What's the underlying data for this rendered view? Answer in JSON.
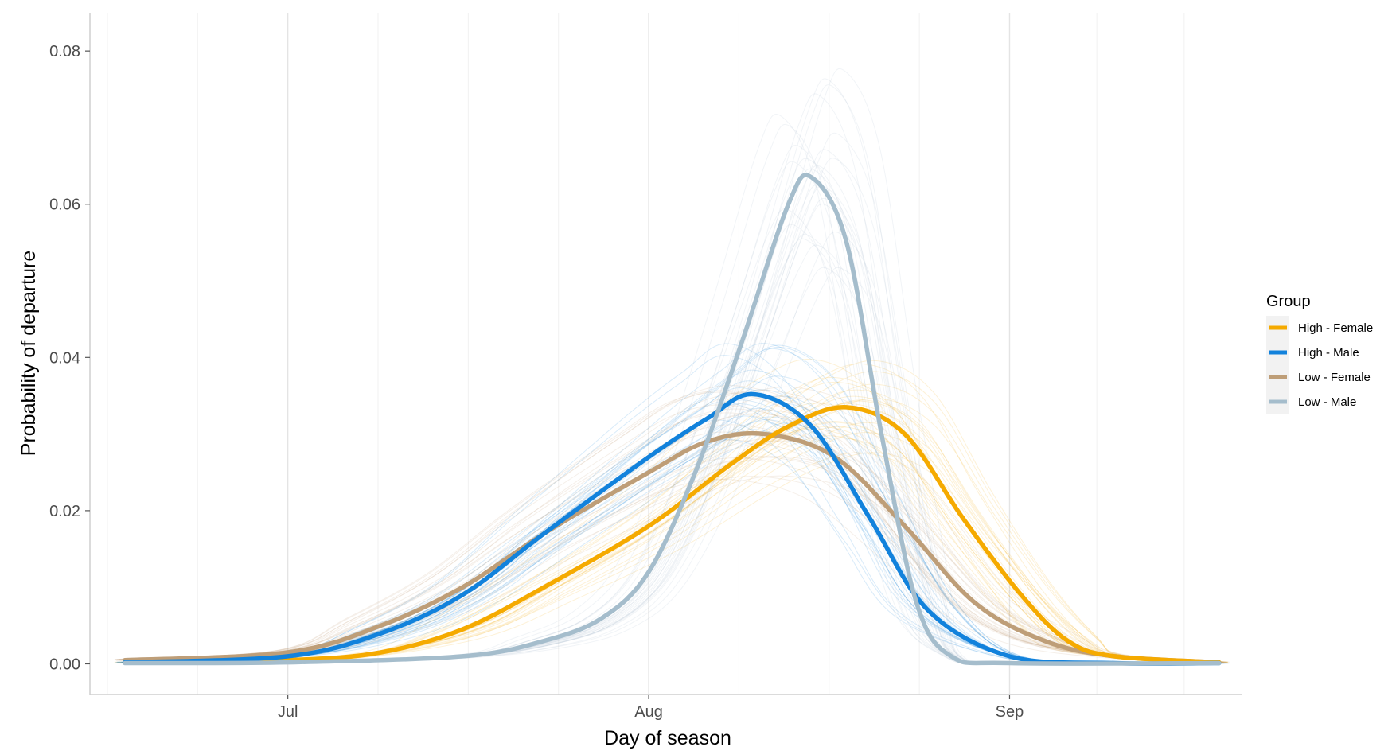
{
  "chart_data": {
    "type": "line",
    "xlabel": "Day of season",
    "ylabel": "Probability of departure",
    "x_units": "date",
    "xlim": [
      "2019-06-14",
      "2019-09-21"
    ],
    "ylim": [
      -0.004,
      0.085
    ],
    "x_ticks": [
      {
        "date": "2019-07-01",
        "label": "Jul"
      },
      {
        "date": "2019-08-01",
        "label": "Aug"
      },
      {
        "date": "2019-09-01",
        "label": "Sep"
      }
    ],
    "y_ticks": [
      {
        "value": 0.0,
        "label": "0.00"
      },
      {
        "value": 0.02,
        "label": "0.02"
      },
      {
        "value": 0.04,
        "label": "0.04"
      },
      {
        "value": 0.06,
        "label": "0.06"
      },
      {
        "value": 0.08,
        "label": "0.08"
      }
    ],
    "grid": true,
    "legend": {
      "title": "Group",
      "position": "right"
    },
    "series": [
      {
        "name": "High - Female",
        "color": "#F5AA00",
        "points": [
          [
            "2019-06-17",
            0.0002
          ],
          [
            "2019-07-01",
            0.0005
          ],
          [
            "2019-07-09",
            0.0015
          ],
          [
            "2019-07-16",
            0.0045
          ],
          [
            "2019-07-23",
            0.01
          ],
          [
            "2019-08-01",
            0.018
          ],
          [
            "2019-08-08",
            0.026
          ],
          [
            "2019-08-13",
            0.031
          ],
          [
            "2019-08-18",
            0.0335
          ],
          [
            "2019-08-23",
            0.03
          ],
          [
            "2019-08-28",
            0.019
          ],
          [
            "2019-09-02",
            0.009
          ],
          [
            "2019-09-06",
            0.003
          ],
          [
            "2019-09-10",
            0.001
          ],
          [
            "2019-09-19",
            0.0002
          ]
        ]
      },
      {
        "name": "High - Male",
        "color": "#1282DC",
        "points": [
          [
            "2019-06-17",
            0.0002
          ],
          [
            "2019-07-01",
            0.001
          ],
          [
            "2019-07-09",
            0.004
          ],
          [
            "2019-07-16",
            0.009
          ],
          [
            "2019-07-23",
            0.017
          ],
          [
            "2019-08-01",
            0.027
          ],
          [
            "2019-08-06",
            0.032
          ],
          [
            "2019-08-10",
            0.0352
          ],
          [
            "2019-08-15",
            0.031
          ],
          [
            "2019-08-20",
            0.019
          ],
          [
            "2019-08-25",
            0.007
          ],
          [
            "2019-09-01",
            0.001
          ],
          [
            "2019-09-10",
            0.0001
          ],
          [
            "2019-09-19",
            0.0001
          ]
        ]
      },
      {
        "name": "Low - Female",
        "color": "#BE9E78",
        "points": [
          [
            "2019-06-17",
            0.0005
          ],
          [
            "2019-07-01",
            0.0015
          ],
          [
            "2019-07-09",
            0.005
          ],
          [
            "2019-07-16",
            0.01
          ],
          [
            "2019-07-23",
            0.017
          ],
          [
            "2019-08-01",
            0.025
          ],
          [
            "2019-08-06",
            0.029
          ],
          [
            "2019-08-11",
            0.03
          ],
          [
            "2019-08-17",
            0.027
          ],
          [
            "2019-08-23",
            0.018
          ],
          [
            "2019-08-29",
            0.008
          ],
          [
            "2019-09-04",
            0.003
          ],
          [
            "2019-09-10",
            0.001
          ],
          [
            "2019-09-19",
            0.0002
          ]
        ]
      },
      {
        "name": "Low - Male",
        "color": "#A5BDCC",
        "points": [
          [
            "2019-06-17",
            0.0001
          ],
          [
            "2019-07-01",
            0.0002
          ],
          [
            "2019-07-16",
            0.001
          ],
          [
            "2019-07-23",
            0.003
          ],
          [
            "2019-07-28",
            0.006
          ],
          [
            "2019-08-01",
            0.012
          ],
          [
            "2019-08-05",
            0.025
          ],
          [
            "2019-08-09",
            0.042
          ],
          [
            "2019-08-13",
            0.06
          ],
          [
            "2019-08-15",
            0.0635
          ],
          [
            "2019-08-18",
            0.055
          ],
          [
            "2019-08-21",
            0.03
          ],
          [
            "2019-08-24",
            0.008
          ],
          [
            "2019-08-27",
            0.001
          ],
          [
            "2019-09-01",
            0.0001
          ],
          [
            "2019-09-19",
            0.0001
          ]
        ]
      }
    ]
  }
}
